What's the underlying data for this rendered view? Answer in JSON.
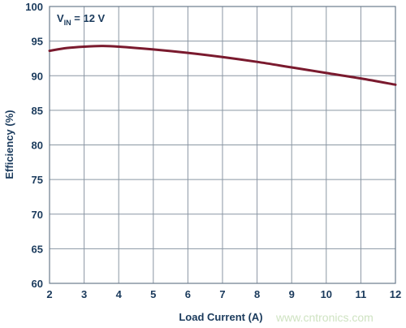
{
  "chart_data": {
    "type": "line",
    "title": "",
    "xlabel": "Load Current (A)",
    "ylabel": "Efficiency (%)",
    "xlim": [
      2,
      12
    ],
    "ylim": [
      60,
      100
    ],
    "x_ticks": [
      "2",
      "3",
      "4",
      "5",
      "6",
      "7",
      "8",
      "9",
      "10",
      "11",
      "12"
    ],
    "y_ticks": [
      "100",
      "95",
      "90",
      "85",
      "80",
      "75",
      "70",
      "65",
      "60"
    ],
    "grid": true,
    "annotation": {
      "main": "V",
      "subscript": "IN",
      "rest": " = 12 V"
    },
    "series": [
      {
        "x": [
          2,
          2.5,
          3,
          3.5,
          4,
          5,
          6,
          7,
          8,
          9,
          10,
          11,
          12
        ],
        "y": [
          93.6,
          94.0,
          94.2,
          94.3,
          94.2,
          93.8,
          93.3,
          92.7,
          92.0,
          91.2,
          90.4,
          89.6,
          88.7
        ],
        "color": "#7a1a2e"
      }
    ]
  },
  "watermark": "www.cntronics.com"
}
